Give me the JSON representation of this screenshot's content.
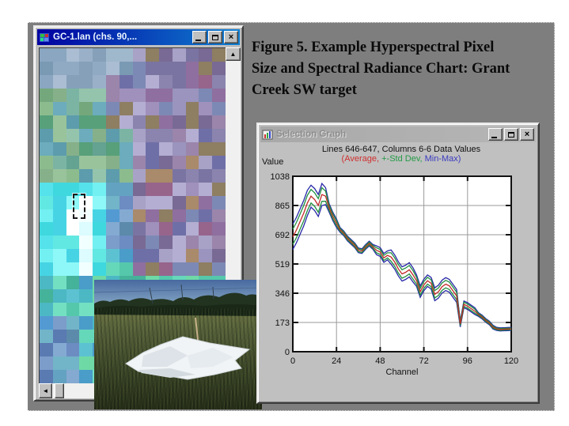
{
  "figure": {
    "caption_lines": [
      "Figure 5.  Example Hyperspectral Pixel",
      "Size and Spectral Radiance Chart: Grant",
      "Creek SW target"
    ]
  },
  "icons": {
    "close_glyph": "×",
    "scroll_up_glyph": "▲",
    "scroll_down_glyph": "▼",
    "scroll_left_glyph": "◄"
  },
  "image_window": {
    "title": "GC-1.lan (chs. 90,...",
    "palettes": {
      "purple_mix": [
        "#8a84ae",
        "#9a94be",
        "#7a74a2",
        "#a8a2c6",
        "#8f6f9f",
        "#97648c",
        "#a98a6a",
        "#8e7e62",
        "#6f6fa8",
        "#a090bc",
        "#786a94",
        "#b4aed2",
        "#7d89b5",
        "#9b85ab"
      ],
      "blue_gray": [
        "#8aa6c0",
        "#7a9ab4",
        "#90aac4",
        "#a0b8cc",
        "#86a0ba",
        "#9ab0c8",
        "#7e92ae",
        "#aabdd2"
      ],
      "green_mix": [
        "#74a87c",
        "#8cbc8e",
        "#64a292",
        "#7cb4a4",
        "#94c4ac",
        "#5c9cac",
        "#6cacbc",
        "#86b089",
        "#99c39b",
        "#57a07a"
      ],
      "cyan_bright": [
        "#55e2ea",
        "#73f0f2",
        "#46d4e4",
        "#8ef8f8",
        "#62e8e2",
        "#3fd8df"
      ],
      "white_bright": [
        "#eaffff",
        "#ffffff",
        "#dcfcff",
        "#f2ffff"
      ],
      "teal_band": [
        "#55c8ab",
        "#66d8ba",
        "#4cb8c4",
        "#74e0c2",
        "#5cc2d2",
        "#4a9cc9",
        "#6fd9a6",
        "#45b29a"
      ],
      "blue_bottom": [
        "#6c8cc2",
        "#5a7ab2",
        "#7c9cca",
        "#64a2c2",
        "#84aad2",
        "#5c8aaa",
        "#72b4c8",
        "#539ad3"
      ]
    }
  },
  "graph_window": {
    "title": "Selection Graph",
    "header_line1": "Lines 646-647, Columns 6-6 Data Values",
    "legend_parts": [
      {
        "text": "(Average,",
        "color": "#cf3030"
      },
      {
        "text": " +-Std Dev,",
        "color": "#229a45"
      },
      {
        "text": " Min-Max)",
        "color": "#3a3ac0"
      }
    ],
    "value_label": "Value",
    "xlabel": "Channel"
  },
  "chart_data": {
    "type": "line",
    "title": "Lines 646-647, Columns 6-6 Data Values",
    "xlabel": "Channel",
    "ylabel": "Value",
    "xlim": [
      0,
      120
    ],
    "ylim": [
      0,
      1038
    ],
    "x_ticks": [
      0,
      24,
      48,
      72,
      96,
      120
    ],
    "y_ticks": [
      0,
      173,
      346,
      519,
      692,
      865,
      1038
    ],
    "grid": true,
    "legend_position": "top",
    "colors": {
      "average": "#c02828",
      "std_dev": "#1f8f3f",
      "min_max": "#2828a8"
    },
    "channels": [
      0,
      2,
      4,
      6,
      8,
      10,
      12,
      14,
      16,
      18,
      20,
      22,
      24,
      26,
      28,
      30,
      32,
      34,
      36,
      38,
      40,
      42,
      44,
      46,
      48,
      50,
      52,
      54,
      56,
      58,
      60,
      62,
      64,
      66,
      68,
      70,
      72,
      74,
      76,
      78,
      80,
      82,
      84,
      86,
      88,
      90,
      92,
      94,
      96,
      98,
      100,
      102,
      104,
      106,
      108,
      110,
      112,
      114,
      116,
      118,
      120
    ],
    "average": [
      680,
      720,
      770,
      820,
      880,
      920,
      900,
      865,
      930,
      920,
      850,
      800,
      760,
      720,
      700,
      670,
      650,
      630,
      600,
      595,
      620,
      640,
      620,
      600,
      590,
      555,
      570,
      560,
      530,
      490,
      460,
      470,
      485,
      455,
      420,
      355,
      395,
      420,
      405,
      340,
      355,
      385,
      400,
      390,
      360,
      330,
      165,
      280,
      270,
      255,
      240,
      220,
      205,
      185,
      170,
      145,
      135,
      132,
      133,
      134,
      135
    ],
    "std_dev_offset": [
      45,
      45,
      45,
      45,
      45,
      40,
      40,
      40,
      40,
      30,
      15,
      15,
      15,
      8,
      8,
      8,
      8,
      8,
      8,
      8,
      8,
      8,
      8,
      15,
      15,
      15,
      15,
      25,
      25,
      25,
      25,
      25,
      25,
      25,
      20,
      20,
      20,
      20,
      20,
      22,
      22,
      22,
      22,
      22,
      22,
      22,
      10,
      12,
      12,
      12,
      12,
      6,
      6,
      6,
      6,
      6,
      5,
      5,
      5,
      5,
      5
    ],
    "minmax_offset": [
      75,
      75,
      75,
      75,
      75,
      65,
      65,
      65,
      65,
      50,
      25,
      25,
      25,
      14,
      14,
      14,
      14,
      14,
      14,
      14,
      14,
      14,
      14,
      26,
      26,
      26,
      26,
      42,
      42,
      42,
      42,
      42,
      42,
      42,
      34,
      34,
      34,
      34,
      34,
      38,
      38,
      38,
      38,
      38,
      38,
      38,
      18,
      20,
      20,
      20,
      20,
      11,
      11,
      11,
      11,
      11,
      9,
      9,
      9,
      9,
      9
    ]
  },
  "photo": {
    "description": "White tarp calibration target lying in a grassy field, treeline and sky behind"
  }
}
